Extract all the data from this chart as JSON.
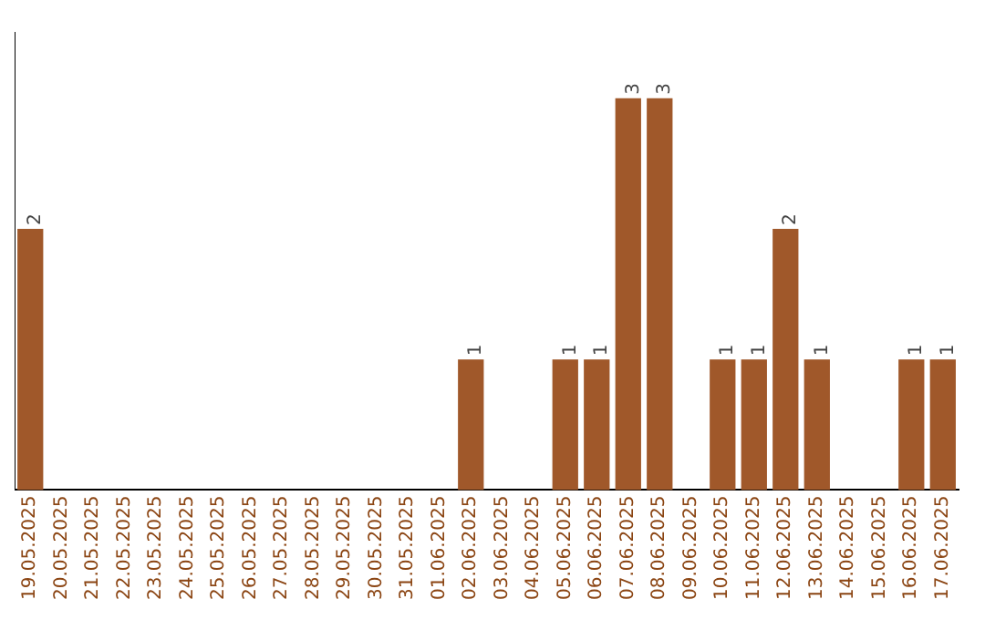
{
  "chart_data": {
    "type": "bar",
    "categories": [
      "19.05.2025",
      "20.05.2025",
      "21.05.2025",
      "22.05.2025",
      "23.05.2025",
      "24.05.2025",
      "25.05.2025",
      "26.05.2025",
      "27.05.2025",
      "28.05.2025",
      "29.05.2025",
      "30.05.2025",
      "31.05.2025",
      "01.06.2025",
      "02.06.2025",
      "03.06.2025",
      "04.06.2025",
      "05.06.2025",
      "06.06.2025",
      "07.06.2025",
      "08.06.2025",
      "09.06.2025",
      "10.06.2025",
      "11.06.2025",
      "12.06.2025",
      "13.06.2025",
      "14.06.2025",
      "15.06.2025",
      "16.06.2025",
      "17.06.2025"
    ],
    "values": [
      2,
      0,
      0,
      0,
      0,
      0,
      0,
      0,
      0,
      0,
      0,
      0,
      0,
      0,
      1,
      0,
      0,
      1,
      1,
      3,
      3,
      0,
      1,
      1,
      2,
      1,
      0,
      0,
      1,
      1
    ],
    "value_labels": [
      "2",
      null,
      null,
      null,
      null,
      null,
      null,
      null,
      null,
      null,
      null,
      null,
      null,
      null,
      "1",
      null,
      null,
      "1",
      "1",
      "3",
      "3",
      null,
      "1",
      "1",
      "2",
      "1",
      null,
      null,
      "1",
      "1"
    ],
    "color": "#a0582a",
    "grid": false,
    "legend": false,
    "tick_labels": "x"
  }
}
